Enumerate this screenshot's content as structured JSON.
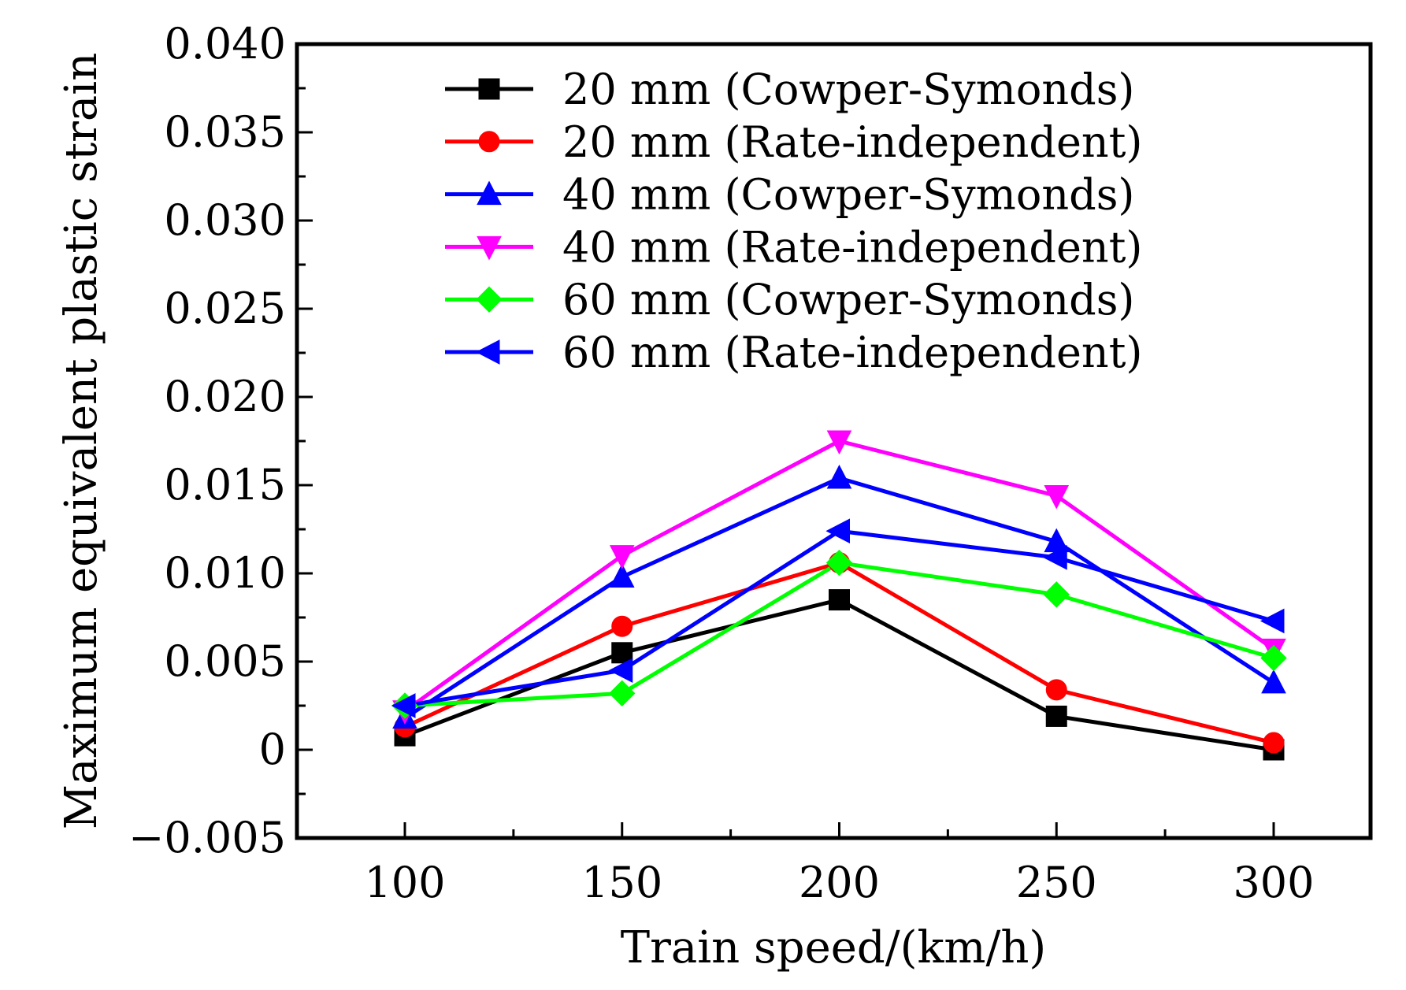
{
  "chart_data": {
    "type": "line",
    "title": "",
    "xlabel": "Train speed/(km/h)",
    "ylabel": "Maximum equivalent plastic strain",
    "x": [
      100,
      150,
      200,
      250,
      300
    ],
    "xlim": [
      75,
      325
    ],
    "ylim": [
      -0.005,
      0.04
    ],
    "xticks": [
      100,
      150,
      200,
      250,
      300
    ],
    "xtick_labels": [
      "100",
      "150",
      "200",
      "250",
      "300"
    ],
    "yticks": [
      -0.005,
      0,
      0.005,
      0.01,
      0.015,
      0.02,
      0.025,
      0.03,
      0.035,
      0.04
    ],
    "ytick_labels": [
      "−0.005",
      "0",
      "0.005",
      "0.010",
      "0.015",
      "0.020",
      "0.025",
      "0.030",
      "0.035",
      "0.040"
    ],
    "grid": false,
    "legend_position": "top-center",
    "series": [
      {
        "name": "20 mm (Cowper-Symonds)",
        "color": "#000000",
        "marker": "square",
        "values": [
          0.0008,
          0.0055,
          0.0085,
          0.0019,
          0.0
        ]
      },
      {
        "name": "20 mm (Rate-independent)",
        "color": "#ff0000",
        "marker": "circle",
        "values": [
          0.0013,
          0.007,
          0.0106,
          0.0034,
          0.0004
        ]
      },
      {
        "name": "40 mm (Cowper-Symonds)",
        "color": "#0000ff",
        "marker": "triangle-up",
        "values": [
          0.0018,
          0.0098,
          0.0154,
          0.0118,
          0.0038
        ]
      },
      {
        "name": "40 mm (Rate-independent)",
        "color": "#ff00ff",
        "marker": "triangle-down",
        "values": [
          0.0022,
          0.011,
          0.0175,
          0.0144,
          0.0057
        ]
      },
      {
        "name": "60 mm (Cowper-Symonds)",
        "color": "#00ff00",
        "marker": "diamond",
        "values": [
          0.0025,
          0.0032,
          0.0106,
          0.0088,
          0.0052
        ]
      },
      {
        "name": "60 mm (Rate-independent)",
        "color": "#0000ff",
        "marker": "triangle-left",
        "values": [
          0.0025,
          0.0045,
          0.0124,
          0.0109,
          0.0073
        ]
      }
    ]
  }
}
